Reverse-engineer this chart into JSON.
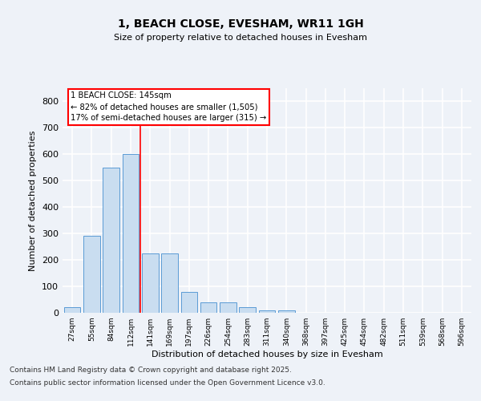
{
  "title": "1, BEACH CLOSE, EVESHAM, WR11 1GH",
  "subtitle": "Size of property relative to detached houses in Evesham",
  "xlabel": "Distribution of detached houses by size in Evesham",
  "ylabel": "Number of detached properties",
  "categories": [
    "27sqm",
    "55sqm",
    "84sqm",
    "112sqm",
    "141sqm",
    "169sqm",
    "197sqm",
    "226sqm",
    "254sqm",
    "283sqm",
    "311sqm",
    "340sqm",
    "368sqm",
    "397sqm",
    "425sqm",
    "454sqm",
    "482sqm",
    "511sqm",
    "539sqm",
    "568sqm",
    "596sqm"
  ],
  "values": [
    22,
    290,
    548,
    600,
    225,
    225,
    80,
    38,
    38,
    22,
    10,
    8,
    0,
    0,
    0,
    0,
    0,
    0,
    0,
    0,
    0
  ],
  "bar_color": "#c9ddf0",
  "bar_edge_color": "#5b9bd5",
  "red_line_index": 3.5,
  "marker_label": "1 BEACH CLOSE: 145sqm",
  "annotation_line1": "← 82% of detached houses are smaller (1,505)",
  "annotation_line2": "17% of semi-detached houses are larger (315) →",
  "ylim": [
    0,
    850
  ],
  "yticks": [
    0,
    100,
    200,
    300,
    400,
    500,
    600,
    700,
    800
  ],
  "background_color": "#eef2f8",
  "plot_bg_color": "#eef2f8",
  "grid_color": "#ffffff",
  "footnote1": "Contains HM Land Registry data © Crown copyright and database right 2025.",
  "footnote2": "Contains public sector information licensed under the Open Government Licence v3.0."
}
